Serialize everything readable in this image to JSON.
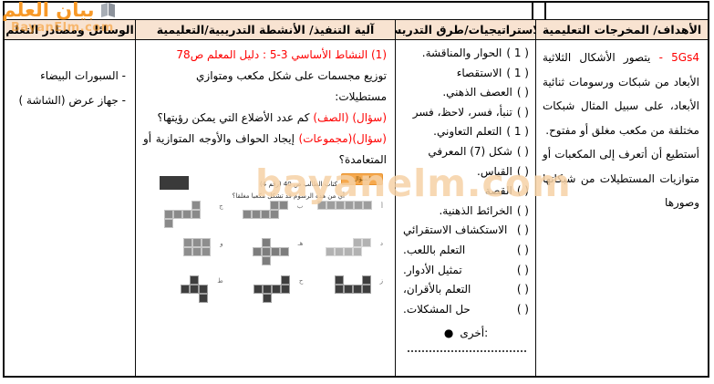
{
  "header": {
    "goals": "الأهداف/ المخرجات التعليمية",
    "strategies": "الاستراتيجيات/طرق التدريس",
    "activities": "آلية التنفيذ/ الأنشطة التدريبية/التعليمية",
    "resources": "الوسائل ومصادر التعلم"
  },
  "goals": {
    "code": "5Gs4",
    "sep": " - ",
    "text": "يتصور الأشكال الثلاثية الأبعاد من شبكات ورسومات ثنائية الأبعاد، على سبيل المثال شبكات مختلفة من مكعب مغلق أو مفتوح.",
    "can_do": "أستطيع أن أتعرف إلى المكعبات أو متوازيات المستطيلات من شبكاتها وصورها"
  },
  "strategies": {
    "items": [
      {
        "m": "( 1 )",
        "t": "الحوار والمناقشة.",
        "j": false
      },
      {
        "m": "( 1 )",
        "t": "الاستقصاء",
        "j": false
      },
      {
        "m": "(  )",
        "t": "العصف الذهني.",
        "j": false
      },
      {
        "m": "(  )",
        "t": "تنبأ، فسر، لاحظ، فسر",
        "j": false
      },
      {
        "m": "( 1 )",
        "t": "التعلم التعاوني.",
        "j": false
      },
      {
        "m": "(  )",
        "t": "شكل (7) المعرفي",
        "j": false
      },
      {
        "m": "(  )",
        "t": "القياس.",
        "j": false
      },
      {
        "m": "(  )",
        "t": "القصة",
        "j": false
      },
      {
        "m": "(  )",
        "t": "الخرائط الذهنية.",
        "j": false
      },
      {
        "m": "(  )",
        "t": "الاستكشاف الاستقرائي",
        "j": true
      },
      {
        "m": "(  )",
        "t": "التعلم باللعب.",
        "j": true
      },
      {
        "m": "(  )",
        "t": "تمثيل الأدوار.",
        "j": true
      },
      {
        "m": "(  )",
        "t": "التعلم بالأقران،",
        "j": true
      },
      {
        "m": "(  )",
        "t": "حل المشكلات.",
        "j": true
      }
    ],
    "other_bullet": "●",
    "other_label": "أخرى:"
  },
  "activities": {
    "title": "(1) النشاط الأساسي 3-5 : دليل المعلم ص78",
    "line1": "توزيع مجسمات على شكل مكعب ومتوازي مستطيلات:",
    "q1_tag": "(سؤال) (الصف)",
    "q1_text": "كم عدد الأضلاع التي يمكن رؤيتها؟",
    "q2_tag": "(سؤال)(مجموعات)",
    "q2_text": "إيجاد الحواف والأوجه المتوازية أو المتعامدة؟",
    "figure": {
      "badge": "السؤال",
      "ref": "كتاب الطالب ص 40 (رقم 4)",
      "question": "أي من هذه الرسوم قد تشكل مكعبا مغلقا؟",
      "nets": [
        {
          "label": "أ",
          "color": "#9d9d9d",
          "rows": [
            "111111"
          ]
        },
        {
          "label": "ب",
          "color": "#878787",
          "rows": [
            "00011",
            "11110"
          ]
        },
        {
          "label": "ج",
          "color": "#8a8a8a",
          "rows": [
            "00010",
            "11110",
            "10000"
          ]
        },
        {
          "label": "د",
          "color": "#b2b2b2",
          "rows": [
            "00011",
            "11110"
          ]
        },
        {
          "label": "هـ",
          "color": "#7d7d7d",
          "rows": [
            "0100",
            "1111",
            "0100"
          ]
        },
        {
          "label": "و",
          "color": "#8e8e8e",
          "rows": [
            "111",
            "111"
          ]
        },
        {
          "label": "ز",
          "color": "#3e3e3e",
          "rows": [
            "1001",
            "1111"
          ]
        },
        {
          "label": "ح",
          "color": "#3e3e3e",
          "rows": [
            "0001",
            "1111",
            "0100"
          ]
        },
        {
          "label": "ط",
          "color": "#3e3e3e",
          "rows": [
            "010",
            "111",
            "001"
          ]
        }
      ]
    }
  },
  "resources": {
    "item1": "- السبورات البيضاء",
    "item2": "- جهاز عرض (الشاشة )"
  },
  "watermark": {
    "logo_text": "بيان العلم",
    "logo_domain": "BayanElm.com",
    "center": "bayanelm.com"
  },
  "colors": {
    "header_bg": "#f8e3d1",
    "accent_red": "#fe0000",
    "watermark_orange": "#f7941d",
    "watermark_light": "#f6d2a6",
    "border_black": "#0b0b0b"
  }
}
